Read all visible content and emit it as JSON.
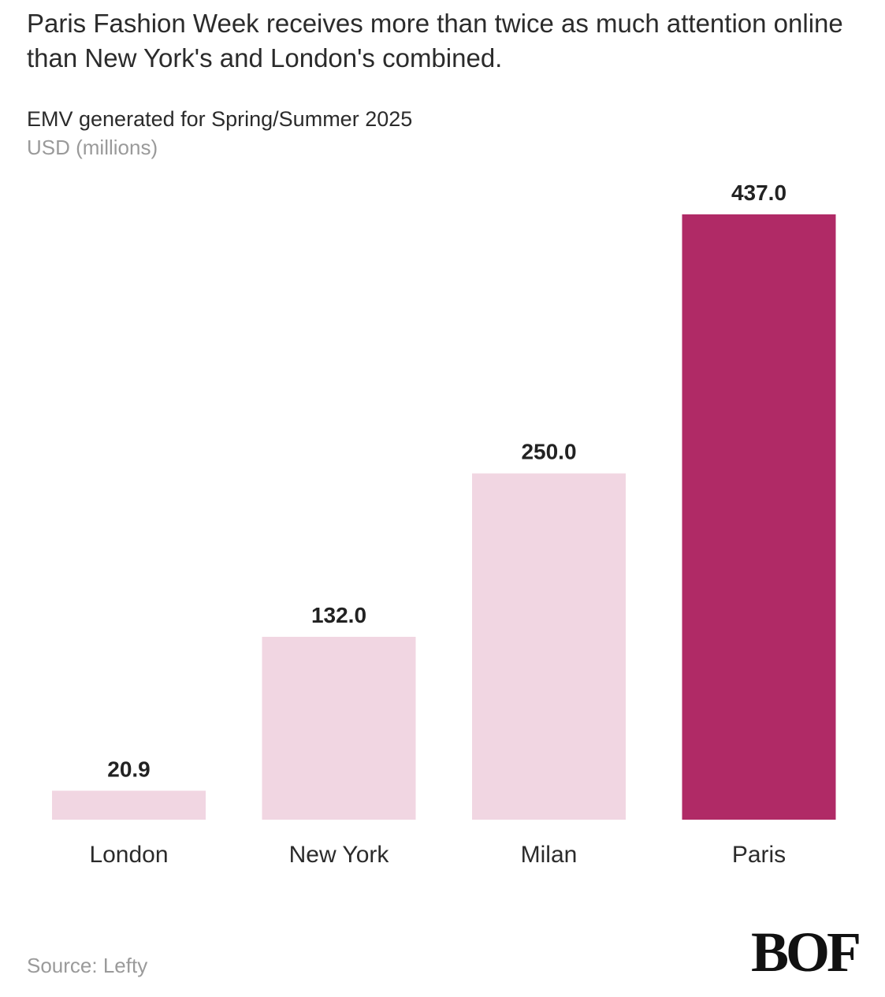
{
  "headline": "Paris Fashion Week receives more than twice as much attention online than New York's and London's combined.",
  "chart_data": {
    "type": "bar",
    "title": "EMV generated for Spring/Summer 2025",
    "subtitle": "USD (millions)",
    "categories": [
      "London",
      "New York",
      "Milan",
      "Paris"
    ],
    "values": [
      20.9,
      132.0,
      250.0,
      437.0
    ],
    "value_labels": [
      "20.9",
      "132.0",
      "250.0",
      "437.0"
    ],
    "highlight": "Paris",
    "colors": {
      "default": "#f1d6e2",
      "highlight": "#b02a66"
    },
    "ylim": [
      0,
      437.0
    ],
    "grid": false,
    "xlabel": "",
    "ylabel": ""
  },
  "source": "Source: Lefty",
  "logo": "BOF"
}
